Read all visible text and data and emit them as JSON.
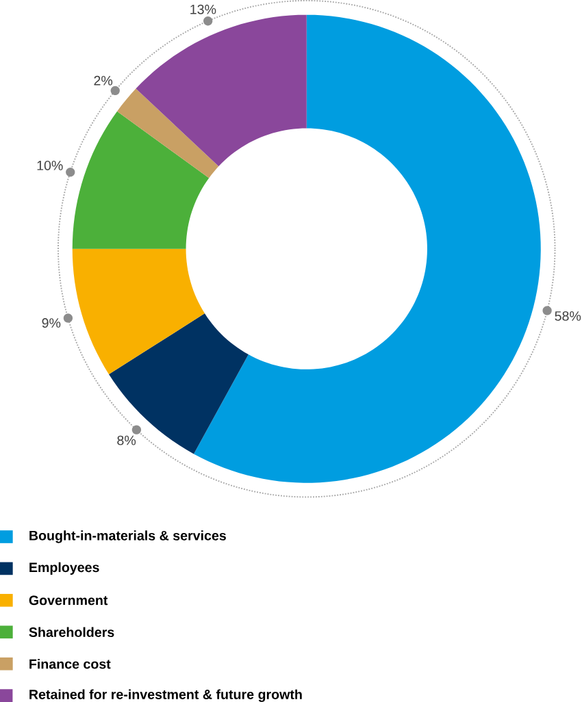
{
  "chart_data": {
    "type": "donut",
    "categories": [
      "Bought-in-materials & services",
      "Employees",
      "Government",
      "Shareholders",
      "Finance cost",
      "Retained for re-investment & future growth"
    ],
    "values": [
      58,
      8,
      9,
      10,
      2,
      13
    ],
    "colors": [
      "#009de0",
      "#003262",
      "#f9b000",
      "#4cb03a",
      "#c9a064",
      "#8a479b"
    ],
    "value_labels": [
      "58%",
      "8%",
      "9%",
      "10%",
      "2%",
      "13%"
    ],
    "legend": "bottom"
  }
}
